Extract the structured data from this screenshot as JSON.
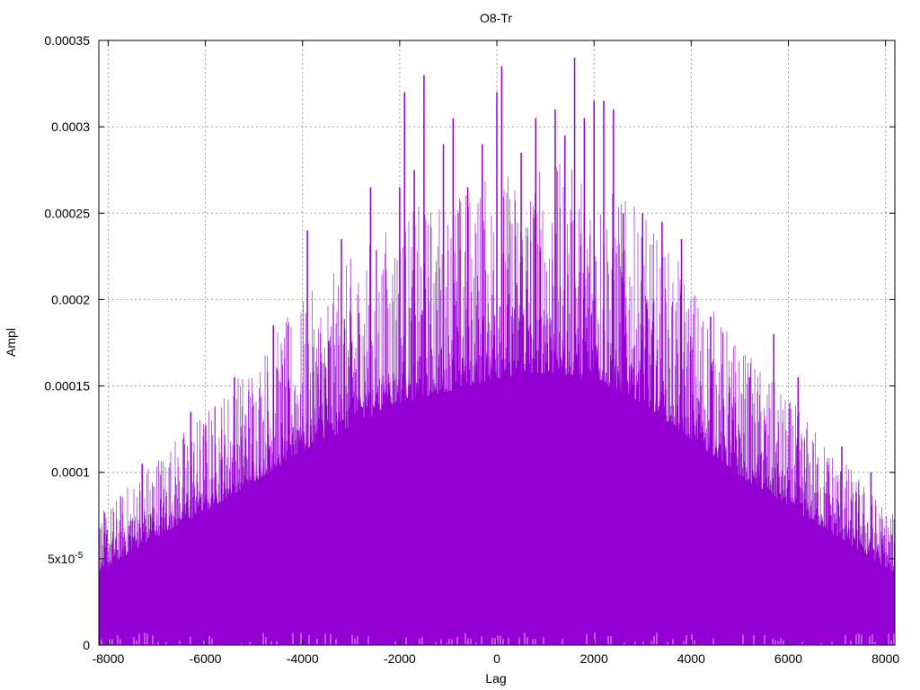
{
  "chart_data": {
    "type": "bar",
    "title": "O8-Tr",
    "xlabel": "Lag",
    "ylabel": "Ampl",
    "xlim": [
      -8192,
      8191
    ],
    "ylim": [
      0,
      0.00035
    ],
    "grid": true,
    "legend": "none",
    "x_ticks": [
      "-8000",
      "-6000",
      "-4000",
      "-2000",
      "0",
      "2000",
      "4000",
      "6000",
      "8000"
    ],
    "y_ticks": [
      "0",
      "5x10",
      "0.0001",
      "0.00015",
      "0.0002",
      "0.00025",
      "0.0003",
      "0.00035"
    ],
    "y_tick_exponent": "-5",
    "series": [
      {
        "color": "#9400d3",
        "envelope_x": [
          -8192,
          -7000,
          -6000,
          -5000,
          -4000,
          -3000,
          -2000,
          -1000,
          0,
          1000,
          2000,
          3000,
          4000,
          5000,
          6000,
          7000,
          8191
        ],
        "envelope_y": [
          6e-05,
          9e-05,
          0.00011,
          0.000135,
          0.00016,
          0.00018,
          0.0002,
          0.00021,
          0.00022,
          0.000225,
          0.00022,
          0.0002,
          0.00017,
          0.00014,
          0.000115,
          9e-05,
          6e-05
        ],
        "peaks_x": [
          -7300,
          -6300,
          -5400,
          -4600,
          -3900,
          -3200,
          -2600,
          -2000,
          -1900,
          -1700,
          -1500,
          -1100,
          -900,
          -600,
          -300,
          0,
          100,
          500,
          800,
          1200,
          1400,
          1600,
          1800,
          2000,
          2200,
          2400,
          2600,
          3000,
          3400,
          3800,
          4400,
          5200,
          5700,
          6200,
          7100,
          7700
        ],
        "peaks_y": [
          0.000105,
          0.000135,
          0.000155,
          0.000185,
          0.00024,
          0.000235,
          0.000265,
          0.000265,
          0.00032,
          0.000275,
          0.00033,
          0.00029,
          0.000305,
          0.000265,
          0.00029,
          0.00032,
          0.000335,
          0.000285,
          0.000305,
          0.00031,
          0.000295,
          0.00034,
          0.000305,
          0.000315,
          0.000315,
          0.00031,
          0.00025,
          0.00025,
          0.000245,
          0.000235,
          0.00019,
          0.000155,
          0.00018,
          0.000155,
          0.000115,
          0.0001
        ]
      }
    ]
  }
}
